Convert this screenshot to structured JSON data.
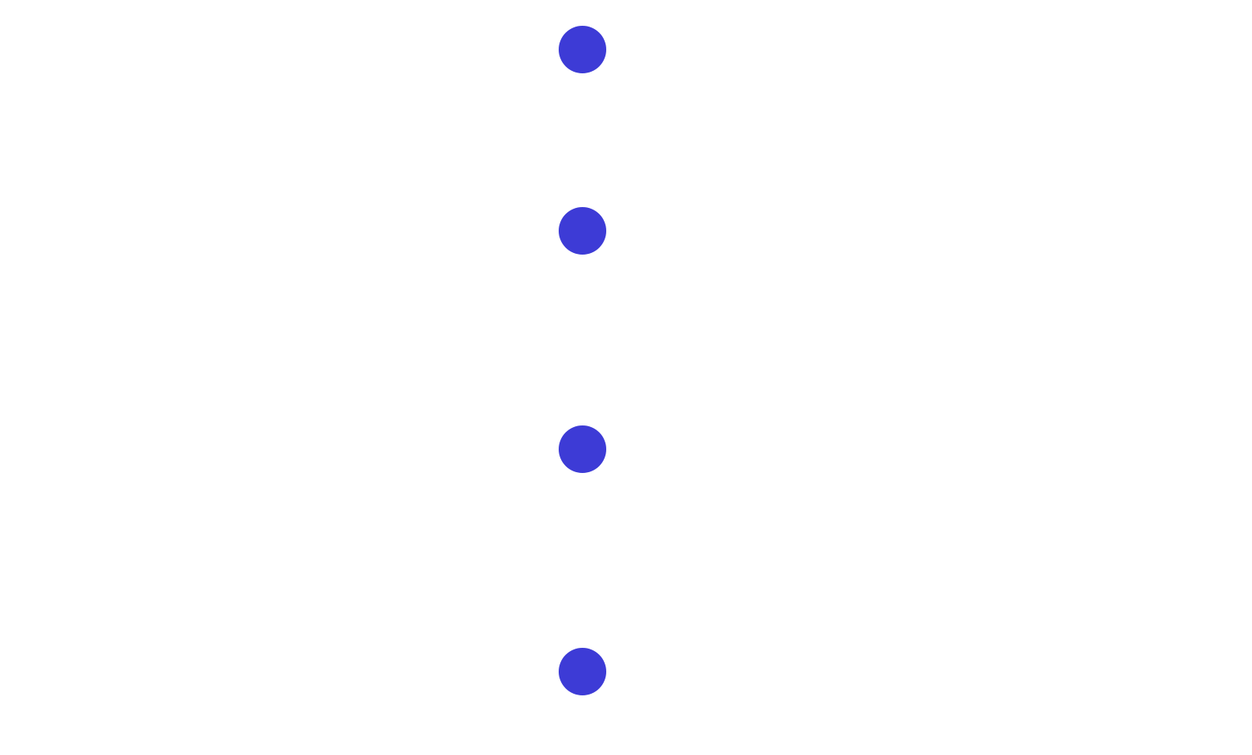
{
  "dots": {
    "color": "#3d3bd6",
    "count": 4
  }
}
